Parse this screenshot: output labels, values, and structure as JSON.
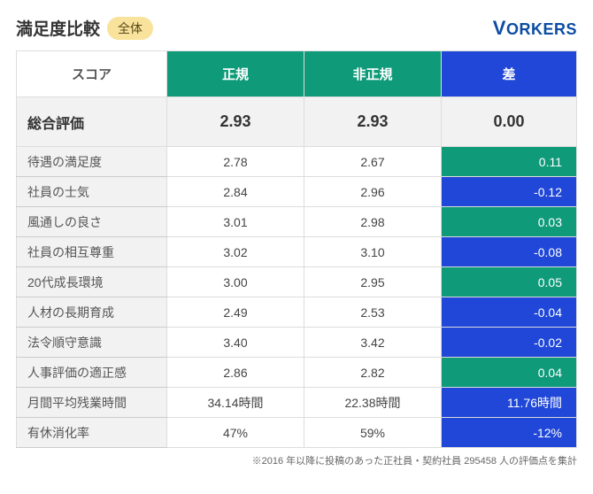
{
  "header": {
    "title": "満足度比較",
    "badge": "全体",
    "brand_v": "V",
    "brand_rest": "ORKERS"
  },
  "colors": {
    "header_regular": "#0f9b7a",
    "header_nonregular": "#0f9b7a",
    "header_diff": "#2047d8",
    "diff_positive": "#0f9b7a",
    "diff_negative": "#2047d8"
  },
  "columns": {
    "score": "スコア",
    "regular": "正規",
    "nonregular": "非正規",
    "diff": "差"
  },
  "overall": {
    "label": "総合評価",
    "regular": "2.93",
    "nonregular": "2.93",
    "diff": "0.00"
  },
  "rows": [
    {
      "label": "待遇の満足度",
      "regular": "2.78",
      "nonregular": "2.67",
      "diff": "0.11",
      "positive": true
    },
    {
      "label": "社員の士気",
      "regular": "2.84",
      "nonregular": "2.96",
      "diff": "-0.12",
      "positive": false
    },
    {
      "label": "風通しの良さ",
      "regular": "3.01",
      "nonregular": "2.98",
      "diff": "0.03",
      "positive": true
    },
    {
      "label": "社員の相互尊重",
      "regular": "3.02",
      "nonregular": "3.10",
      "diff": "-0.08",
      "positive": false
    },
    {
      "label": "20代成長環境",
      "regular": "3.00",
      "nonregular": "2.95",
      "diff": "0.05",
      "positive": true
    },
    {
      "label": "人材の長期育成",
      "regular": "2.49",
      "nonregular": "2.53",
      "diff": "-0.04",
      "positive": false
    },
    {
      "label": "法令順守意識",
      "regular": "3.40",
      "nonregular": "3.42",
      "diff": "-0.02",
      "positive": false
    },
    {
      "label": "人事評価の適正感",
      "regular": "2.86",
      "nonregular": "2.82",
      "diff": "0.04",
      "positive": true
    },
    {
      "label": "月間平均残業時間",
      "regular": "34.14時間",
      "nonregular": "22.38時間",
      "diff": "11.76時間",
      "positive": false
    },
    {
      "label": "有休消化率",
      "regular": "47%",
      "nonregular": "59%",
      "diff": "-12%",
      "positive": false
    }
  ],
  "footnote": "※2016 年以降に投稿のあった正社員・契約社員 295458 人の評価点を集計"
}
